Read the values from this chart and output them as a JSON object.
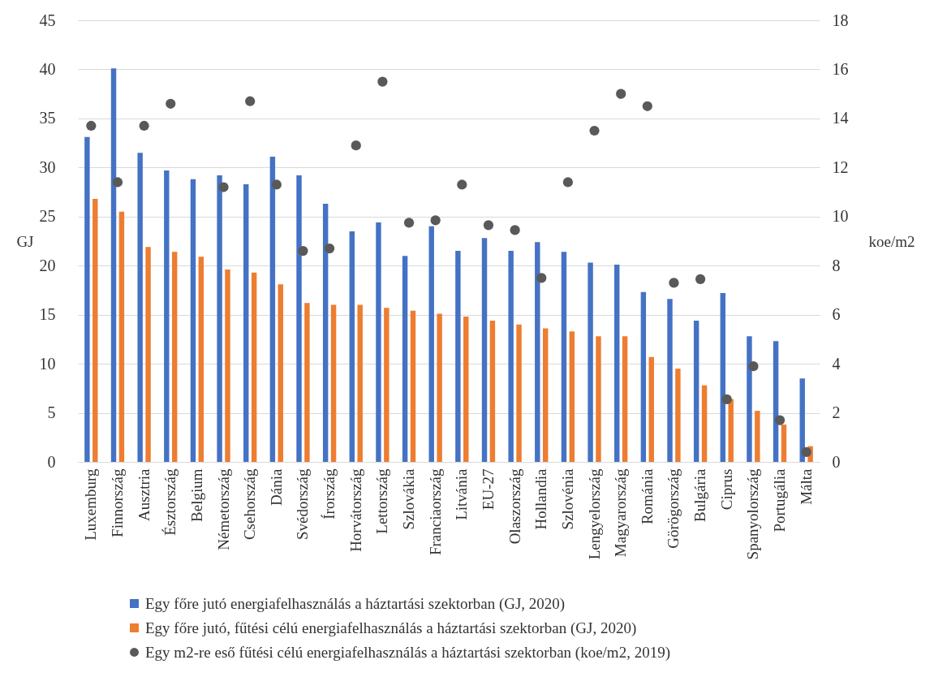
{
  "chart_data": {
    "type": "bar",
    "categories": [
      "Luxemburg",
      "Finnország",
      "Ausztria",
      "Észtország",
      "Belgium",
      "Németország",
      "Csehország",
      "Dánia",
      "Svédország",
      "Írország",
      "Horvátország",
      "Lettország",
      "Szlovákia",
      "Franciaország",
      "Litvánia",
      "EU-27",
      "Olaszország",
      "Hollandia",
      "Szlovénia",
      "Lengyelország",
      "Magyarország",
      "Románia",
      "Görögország",
      "Bulgária",
      "Ciprus",
      "Spanyolország",
      "Portugália",
      "Málta"
    ],
    "series": [
      {
        "name": "Egy főre jutó energiafelhasználás a háztartási szektorban (GJ, 2020)",
        "color": "#4472c4",
        "values": [
          33.1,
          40.1,
          31.5,
          29.7,
          28.8,
          29.2,
          28.3,
          31.1,
          29.2,
          26.3,
          23.5,
          24.4,
          21.0,
          24.0,
          21.5,
          22.8,
          21.5,
          22.4,
          21.4,
          20.3,
          20.1,
          17.3,
          16.6,
          14.4,
          17.2,
          12.8,
          12.3,
          8.5
        ]
      },
      {
        "name": "Egy főre jutó, fűtési célú energiafelhasználás a háztartási szektorban (GJ, 2020)",
        "color": "#ed7d31",
        "values": [
          26.8,
          25.5,
          21.9,
          21.4,
          20.9,
          19.6,
          19.3,
          18.1,
          16.2,
          16.0,
          16.0,
          15.7,
          15.4,
          15.1,
          14.8,
          14.4,
          14.0,
          13.6,
          13.3,
          12.8,
          12.8,
          10.7,
          9.5,
          7.8,
          6.4,
          5.2,
          3.8,
          1.6
        ]
      },
      {
        "name": "Egy m2-re eső fűtési célú energiafelhasználás a háztartási szektorban (koe/m2, 2019)",
        "type": "scatter",
        "axis": "y2",
        "marker": "circle",
        "color": "#595959",
        "values": [
          13.7,
          11.4,
          13.7,
          14.6,
          null,
          11.2,
          14.7,
          11.3,
          8.6,
          8.7,
          12.9,
          15.5,
          9.75,
          9.85,
          11.3,
          9.65,
          9.45,
          7.5,
          11.4,
          13.5,
          15.0,
          14.5,
          7.3,
          7.45,
          2.55,
          3.9,
          1.7,
          0.4
        ]
      }
    ],
    "ylabel": "GJ",
    "y2label": "koe/m2",
    "ylim": [
      0,
      45
    ],
    "yticks": [
      0,
      5,
      10,
      15,
      20,
      25,
      30,
      35,
      40,
      45
    ],
    "y2lim": [
      0,
      18
    ],
    "y2ticks": [
      0,
      2,
      4,
      6,
      8,
      10,
      12,
      14,
      16,
      18
    ],
    "grid": "y",
    "legend": "bottom"
  }
}
